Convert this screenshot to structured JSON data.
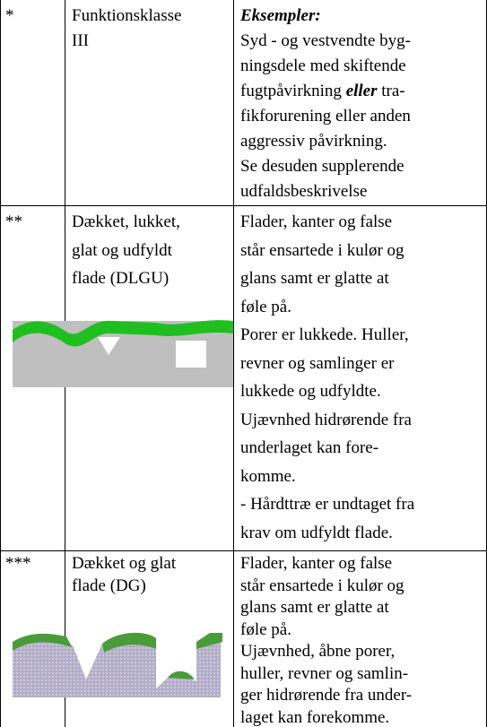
{
  "table": {
    "rows": [
      {
        "marker": "*",
        "title": [
          "Funktionsklasse",
          "III"
        ],
        "desc": [
          [
            "Eksempler:"
          ],
          [
            "Syd - og vestvendte byg-"
          ],
          [
            "ningsdele med skiftende"
          ],
          [
            "fugtpåvirkning ",
            "eller",
            " tra-"
          ],
          [
            "fikforurening eller anden"
          ],
          [
            "aggressiv påvirkning."
          ],
          [
            "Se desuden supplerende"
          ],
          [
            "udfaldsbeskrivelse"
          ]
        ]
      },
      {
        "marker": "**",
        "title": [
          "Dækket, lukket,",
          "glat og udfyldt",
          "flade (DLGU)"
        ],
        "desc": [
          [
            "Flader, kanter og false"
          ],
          [
            "står ensartede i kulør og"
          ],
          [
            "glans samt er glatte at"
          ],
          [
            "føle på."
          ],
          [
            "Porer er lukkede. Huller,"
          ],
          [
            "revner og samlinger er"
          ],
          [
            "lukkede og udfyldte."
          ],
          [
            "Ujævnhed hidrørende fra"
          ],
          [
            "underlaget kan fore-"
          ],
          [
            "komme."
          ],
          [
            "- Hårdttræ er undtaget fra"
          ],
          [
            "krav om udfyldt flade."
          ]
        ]
      },
      {
        "marker": "***",
        "title": [
          "Dækket og glat",
          "flade (DG)"
        ],
        "desc": [
          [
            "Flader, kanter og false"
          ],
          [
            "står ensartede i kulør og"
          ],
          [
            "glans samt er glatte at"
          ],
          [
            "føle på."
          ],
          [
            "Ujævnhed, åbne porer,"
          ],
          [
            "huller, revner og samlin-"
          ],
          [
            "ger hidrørende fra under-"
          ],
          [
            "laget kan forekomme."
          ]
        ]
      }
    ]
  }
}
